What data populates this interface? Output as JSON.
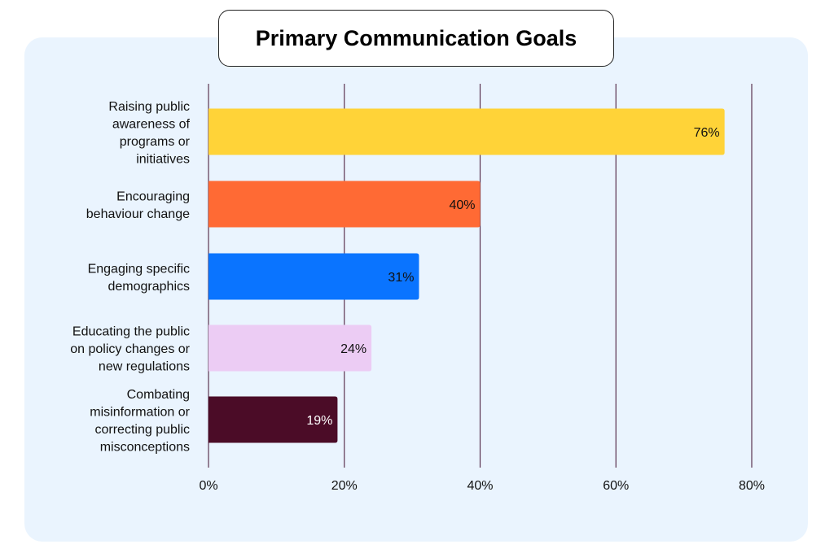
{
  "chart_data": {
    "type": "bar",
    "orientation": "horizontal",
    "title": "Primary Communication Goals",
    "categories": [
      [
        "Raising public",
        "awareness of",
        "programs or",
        "initiatives"
      ],
      [
        "Encouraging",
        "behaviour change"
      ],
      [
        "Engaging specific",
        "demographics"
      ],
      [
        "Educating the public",
        "on policy changes or",
        "new regulations"
      ],
      [
        "Combating",
        "misinformation or",
        "correcting public",
        "misconceptions"
      ]
    ],
    "values": [
      76,
      40,
      31,
      24,
      19
    ],
    "value_labels": [
      "76%",
      "40%",
      "31%",
      "24%",
      "19%"
    ],
    "colors": [
      "#ffd338",
      "#ff6a34",
      "#0a74ff",
      "#ecccf4",
      "#4b0c27"
    ],
    "label_colors": [
      "#111111",
      "#111111",
      "#111111",
      "#111111",
      "#ffffff"
    ],
    "xlim": [
      0,
      80
    ],
    "xticks": [
      0,
      20,
      40,
      60,
      80
    ],
    "xtick_labels": [
      "0%",
      "20%",
      "40%",
      "60%",
      "80%"
    ],
    "grid": "vertical",
    "grid_color": "#5a3350",
    "background_color": "#eaf4fe"
  }
}
